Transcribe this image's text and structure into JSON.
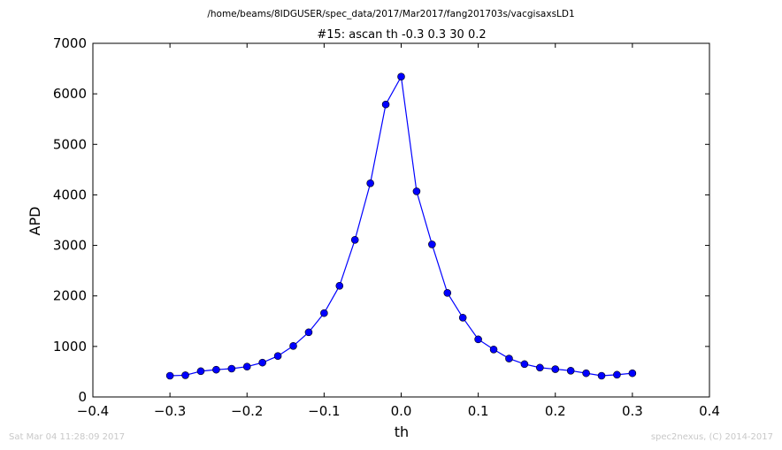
{
  "figure": {
    "suptitle": "/home/beams/8IDGUSER/spec_data/2017/Mar2017/fang201703s/vacgisaxsLD1",
    "timestamp": "Sat Mar 04 11:28:09 2017",
    "credit": "spec2nexus, (C) 2014-2017"
  },
  "chart_data": {
    "type": "line",
    "title": "#15: ascan  th -0.3 0.3  30 0.2",
    "xlabel": "th",
    "ylabel": "APD",
    "xlim": [
      -0.4,
      0.4
    ],
    "ylim": [
      0,
      7000
    ],
    "xticks": [
      -0.4,
      -0.3,
      -0.2,
      -0.1,
      0.0,
      0.1,
      0.2,
      0.3,
      0.4
    ],
    "xtick_labels": [
      "−0.4",
      "−0.3",
      "−0.2",
      "−0.1",
      "0.0",
      "0.1",
      "0.2",
      "0.3",
      "0.4"
    ],
    "yticks": [
      0,
      1000,
      2000,
      3000,
      4000,
      5000,
      6000,
      7000
    ],
    "ytick_labels": [
      "0",
      "1000",
      "2000",
      "3000",
      "4000",
      "5000",
      "6000",
      "7000"
    ],
    "grid": false,
    "marker": "circle",
    "color": "#0000ff",
    "series": [
      {
        "x": [
          -0.3,
          -0.28,
          -0.26,
          -0.24,
          -0.22,
          -0.2,
          -0.18,
          -0.16,
          -0.14,
          -0.12,
          -0.1,
          -0.08,
          -0.06,
          -0.04,
          -0.02,
          0.0,
          0.02,
          0.04,
          0.06,
          0.08,
          0.1,
          0.12,
          0.14,
          0.16,
          0.18,
          0.2,
          0.22,
          0.24,
          0.26,
          0.28,
          0.3
        ],
        "y": [
          420,
          430,
          510,
          540,
          560,
          600,
          680,
          810,
          1010,
          1280,
          1660,
          2200,
          3110,
          4230,
          5790,
          6340,
          4070,
          3020,
          2060,
          1570,
          1140,
          940,
          760,
          650,
          580,
          550,
          520,
          470,
          420,
          440,
          470
        ]
      }
    ]
  }
}
